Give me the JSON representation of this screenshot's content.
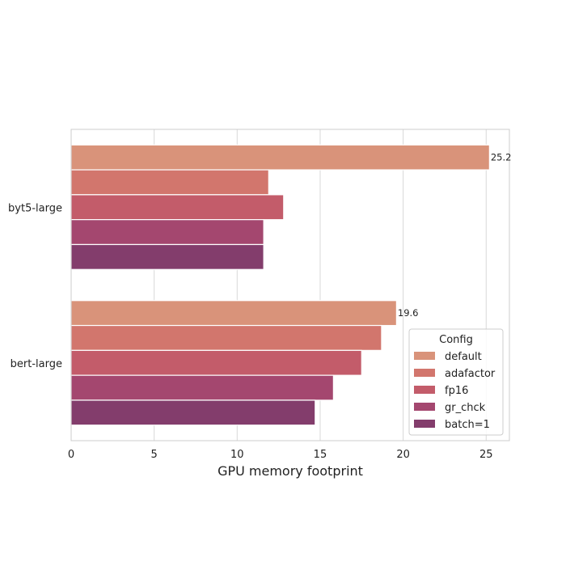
{
  "chart_data": {
    "type": "bar",
    "orientation": "horizontal",
    "title": "",
    "xlabel": "GPU memory footprint",
    "ylabel": "",
    "xlim": [
      0,
      26.4
    ],
    "xticks": [
      0,
      5,
      10,
      15,
      20,
      25
    ],
    "grid": true,
    "categories": [
      "byt5-large",
      "bert-large"
    ],
    "legend": {
      "title": "Config",
      "placement": "lower-right"
    },
    "series": [
      {
        "name": "default",
        "color": "#d9937a",
        "values": [
          25.2,
          19.6
        ]
      },
      {
        "name": "adafactor",
        "color": "#d2766d",
        "values": [
          11.9,
          18.7
        ]
      },
      {
        "name": "fp16",
        "color": "#c35c6a",
        "values": [
          12.8,
          17.5
        ]
      },
      {
        "name": "gr_chck",
        "color": "#a4476f",
        "values": [
          11.6,
          15.8
        ]
      },
      {
        "name": "batch=1",
        "color": "#833d6c",
        "values": [
          11.6,
          14.7
        ]
      }
    ],
    "annotations": [
      {
        "category": "byt5-large",
        "series": "default",
        "text": "25.2"
      },
      {
        "category": "bert-large",
        "series": "default",
        "text": "19.6"
      }
    ]
  }
}
